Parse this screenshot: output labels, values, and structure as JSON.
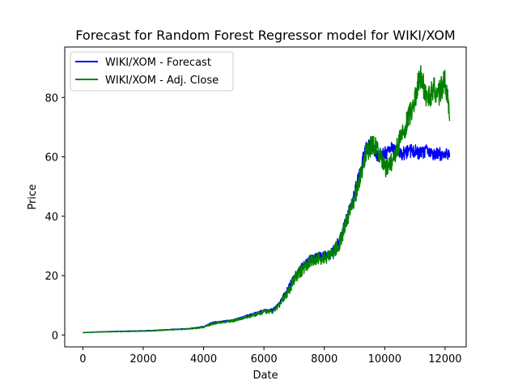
{
  "chart_data": {
    "type": "line",
    "title": "Forecast for Random Forest Regressor model for WIKI/XOM",
    "xlabel": "Date",
    "ylabel": "Price",
    "xlim": [
      -600,
      12700
    ],
    "ylim": [
      -4,
      97
    ],
    "xticks": [
      0,
      2000,
      4000,
      6000,
      8000,
      10000,
      12000
    ],
    "yticks": [
      0,
      20,
      40,
      60,
      80
    ],
    "legend_position": "upper-left",
    "grid": false,
    "series": [
      {
        "name": "WIKI/XOM - Forecast",
        "color": "#0000ff",
        "noise": 0.9,
        "x": [
          0,
          500,
          1000,
          1500,
          2000,
          2500,
          3000,
          3500,
          4000,
          4300,
          4600,
          5000,
          5500,
          6000,
          6300,
          6500,
          6800,
          7000,
          7300,
          7600,
          7900,
          8200,
          8500,
          8800,
          9000,
          9200,
          9400,
          9600,
          9800,
          10000,
          10200,
          10400,
          10600,
          10800,
          11000,
          11200,
          11400,
          11600,
          11800,
          12000,
          12150
        ],
        "y": [
          0.8,
          1.0,
          1.2,
          1.3,
          1.4,
          1.6,
          1.9,
          2.1,
          2.8,
          4.2,
          4.5,
          5.0,
          6.6,
          8.2,
          8.4,
          10.5,
          15.5,
          19.5,
          23.5,
          26.0,
          26.5,
          27.0,
          32.0,
          41.0,
          48.0,
          56.0,
          64.0,
          63.0,
          60.0,
          61.0,
          63.0,
          62.0,
          61.0,
          62.0,
          62.0,
          61.0,
          62.0,
          61.0,
          61.0,
          61.0,
          61.0
        ]
      },
      {
        "name": "WIKI/XOM - Adj. Close",
        "color": "#008000",
        "noise": 1.4,
        "x": [
          0,
          500,
          1000,
          1500,
          2000,
          2500,
          3000,
          3500,
          4000,
          4300,
          4600,
          5000,
          5500,
          6000,
          6300,
          6500,
          6800,
          7000,
          7300,
          7600,
          7900,
          8200,
          8500,
          8800,
          9000,
          9200,
          9400,
          9600,
          9800,
          10000,
          10200,
          10400,
          10600,
          10800,
          11000,
          11200,
          11400,
          11600,
          11800,
          12000,
          12150
        ],
        "y": [
          0.8,
          1.0,
          1.1,
          1.2,
          1.3,
          1.5,
          1.8,
          2.0,
          2.6,
          3.8,
          4.3,
          4.8,
          6.2,
          7.8,
          8.0,
          10.0,
          14.5,
          18.5,
          22.5,
          25.5,
          26.0,
          26.5,
          31.0,
          40.0,
          46.0,
          54.0,
          62.0,
          64.0,
          62.0,
          56.0,
          58.0,
          63.0,
          68.0,
          73.0,
          80.0,
          88.0,
          78.0,
          83.0,
          81.0,
          86.0,
          74.0
        ]
      }
    ]
  }
}
